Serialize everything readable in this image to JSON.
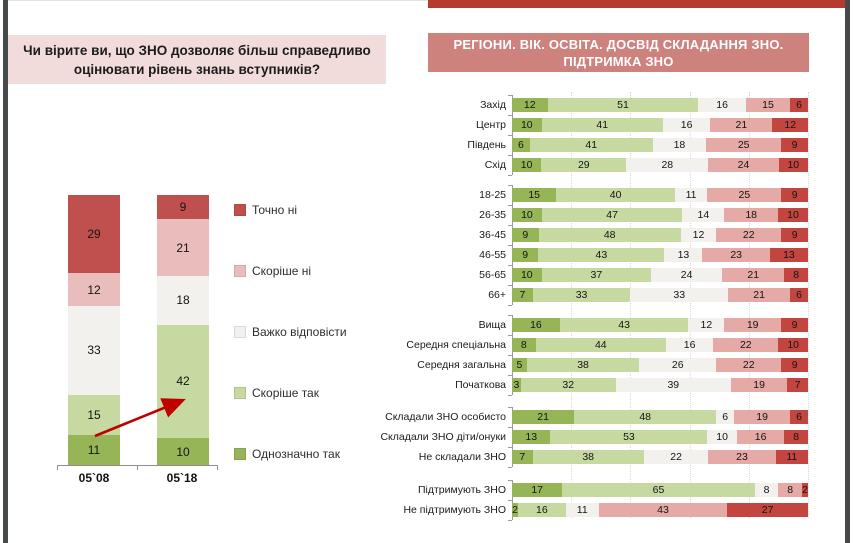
{
  "window": {
    "side_border_color": "#46494b",
    "top_accent_color": "#b73a2e"
  },
  "left_panel": {
    "title_line1": "Чи вірите ви, що ЗНО дозволяє більш справедливо",
    "title_line2": "оцінювати рівень знань вступників?",
    "title_bg": "#f2dcdb"
  },
  "right_panel": {
    "title_line1": "РЕГІОНИ. ВІК. ОСВІТА. ДОСВІД СКЛАДАННЯ ЗНО.",
    "title_line2": "ПІДТРИМКА ЗНО",
    "title_bg": "#cd827e"
  },
  "chart_data": [
    {
      "type": "bar",
      "orientation": "vertical-stacked",
      "title": "Чи вірите ви, що ЗНО дозволяє більш справедливо оцінювати рівень знань вступників?",
      "categories": [
        "05`08",
        "05`18"
      ],
      "ylim": [
        0,
        100
      ],
      "series": [
        {
          "name": "Однозначно так",
          "color": "#96b556",
          "values": [
            11,
            10
          ]
        },
        {
          "name": "Скоріше так",
          "color": "#c6d9a0",
          "values": [
            15,
            42
          ]
        },
        {
          "name": "Важко відповісти",
          "color": "#f2f1ee",
          "values": [
            33,
            18
          ]
        },
        {
          "name": "Скоріше ні",
          "color": "#e9bdbc",
          "values": [
            12,
            21
          ]
        },
        {
          "name": "Точно ні",
          "color": "#c0504d",
          "values": [
            29,
            9
          ]
        }
      ],
      "legend_position": "right",
      "legend": [
        {
          "label": "Точно ні",
          "color": "#c0504d"
        },
        {
          "label": "Скоріше ні",
          "color": "#e9bdbc"
        },
        {
          "label": "Важко відповісти",
          "color": "#f2f1ee"
        },
        {
          "label": "Скоріше так",
          "color": "#c6d9a0"
        },
        {
          "label": "Однозначно так",
          "color": "#96b556"
        }
      ],
      "annotation": {
        "type": "arrow",
        "color": "#c00000",
        "meaning": "rise of 'Скоріше так' from 15 (05`08) to 42 (05`18)"
      }
    },
    {
      "type": "bar",
      "orientation": "horizontal-stacked",
      "title": "РЕГІОНИ. ВІК. ОСВІТА. ДОСВІД СКЛАДАННЯ ЗНО. ПІДТРИМКА ЗНО",
      "xlim": [
        0,
        100
      ],
      "series_names": [
        "Однозначно так",
        "Скоріше так",
        "Важко відповісти",
        "Скоріше ні",
        "Точно ні"
      ],
      "colors": [
        "#96b556",
        "#c6d9a0",
        "#f2f1ee",
        "#e5a9a6",
        "#c2453f"
      ],
      "grid": "dotted-vertical",
      "groups": [
        {
          "rows": [
            {
              "label": "Захід",
              "values": [
                12,
                51,
                16,
                15,
                6
              ]
            },
            {
              "label": "Центр",
              "values": [
                10,
                41,
                16,
                21,
                12
              ]
            },
            {
              "label": "Південь",
              "values": [
                6,
                41,
                18,
                25,
                9
              ]
            },
            {
              "label": "Схід",
              "values": [
                10,
                29,
                28,
                24,
                10
              ]
            }
          ]
        },
        {
          "rows": [
            {
              "label": "18-25",
              "values": [
                15,
                40,
                11,
                25,
                9
              ]
            },
            {
              "label": "26-35",
              "values": [
                10,
                47,
                14,
                18,
                10
              ]
            },
            {
              "label": "36-45",
              "values": [
                9,
                48,
                12,
                22,
                9
              ]
            },
            {
              "label": "46-55",
              "values": [
                9,
                43,
                13,
                23,
                13
              ]
            },
            {
              "label": "56-65",
              "values": [
                10,
                37,
                24,
                21,
                8
              ]
            },
            {
              "label": "66+",
              "values": [
                7,
                33,
                33,
                21,
                6
              ]
            }
          ]
        },
        {
          "rows": [
            {
              "label": "Вища",
              "values": [
                16,
                43,
                12,
                19,
                9
              ]
            },
            {
              "label": "Середня спеціальна",
              "values": [
                8,
                44,
                16,
                22,
                10
              ]
            },
            {
              "label": "Середня загальна",
              "values": [
                5,
                38,
                26,
                22,
                9
              ]
            },
            {
              "label": "Початкова",
              "values": [
                3,
                32,
                39,
                19,
                7
              ]
            }
          ]
        },
        {
          "rows": [
            {
              "label": "Складали ЗНО особисто",
              "values": [
                21,
                48,
                6,
                19,
                6
              ]
            },
            {
              "label": "Складали ЗНО діти/онуки",
              "values": [
                13,
                53,
                10,
                16,
                8
              ]
            },
            {
              "label": "Не складали ЗНО",
              "values": [
                7,
                38,
                22,
                23,
                11
              ]
            }
          ]
        },
        {
          "rows": [
            {
              "label": "Підтримують ЗНО",
              "values": [
                17,
                65,
                8,
                8,
                2
              ]
            },
            {
              "label": "Не підтримують ЗНО",
              "values": [
                2,
                16,
                11,
                43,
                27
              ]
            }
          ]
        }
      ]
    }
  ]
}
